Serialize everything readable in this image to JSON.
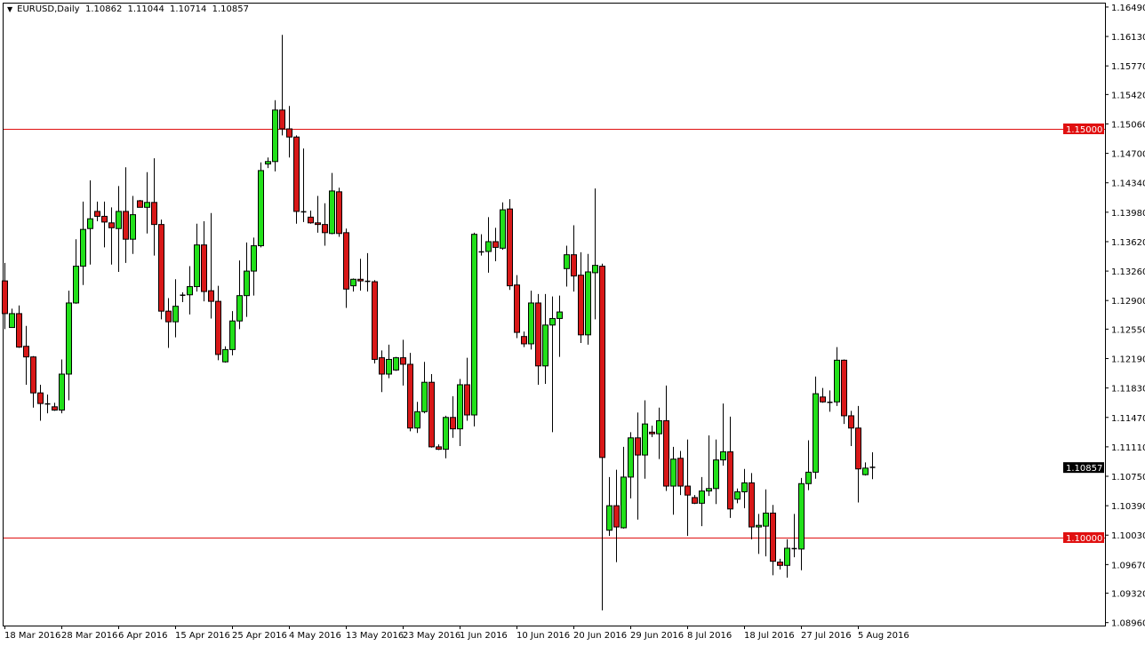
{
  "header": {
    "symbol": "EURUSD,Daily",
    "open": "1.10862",
    "high": "1.11044",
    "low": "1.10714",
    "close": "1.10857"
  },
  "colors": {
    "bull": "#22e01a",
    "bear": "#d81818",
    "level_line": "#e01010",
    "last_price_tag": "#000000"
  },
  "chart_data": {
    "type": "candlestick",
    "title": "",
    "symbol": "EURUSD",
    "timeframe": "Daily",
    "ylim": [
      1.0892,
      1.1652
    ],
    "grid": false,
    "y_ticks": [
      "1.16490",
      "1.16130",
      "1.15770",
      "1.15420",
      "1.15060",
      "1.14700",
      "1.14340",
      "1.13980",
      "1.13620",
      "1.13260",
      "1.12900",
      "1.12550",
      "1.12190",
      "1.11830",
      "1.11470",
      "1.11110",
      "1.10750",
      "1.10390",
      "1.10030",
      "1.09670",
      "1.09320",
      "1.08960"
    ],
    "x_ticks": [
      "18 Mar 2016",
      "28 Mar 2016",
      "6 Apr 2016",
      "15 Apr 2016",
      "25 Apr 2016",
      "4 May 2016",
      "13 May 2016",
      "23 May 2016",
      "1 Jun 2016",
      "10 Jun 2016",
      "20 Jun 2016",
      "29 Jun 2016",
      "8 Jul 2016",
      "18 Jul 2016",
      "27 Jul 2016",
      "5 Aug 2016"
    ],
    "bars_per_x_tick": 8,
    "horizontal_lines": [
      {
        "price": 1.15,
        "label": "1.15000"
      },
      {
        "price": 1.1,
        "label": "1.10000"
      }
    ],
    "last_price": {
      "price": 1.10857,
      "label": "1.10857"
    },
    "ohlc_columns": [
      "open",
      "high",
      "low",
      "close"
    ],
    "candles": [
      [
        1.1314,
        1.1336,
        1.1255,
        1.1274
      ],
      [
        1.1257,
        1.128,
        1.1257,
        1.1274
      ],
      [
        1.1274,
        1.1284,
        1.1232,
        1.1233
      ],
      [
        1.1234,
        1.1259,
        1.1187,
        1.1221
      ],
      [
        1.1221,
        1.1222,
        1.1159,
        1.1177
      ],
      [
        1.1177,
        1.1187,
        1.1143,
        1.1164
      ],
      [
        1.1164,
        1.1175,
        1.1152,
        1.1163
      ],
      [
        1.116,
        1.1165,
        1.1155,
        1.1156
      ],
      [
        1.1156,
        1.1218,
        1.1152,
        1.12
      ],
      [
        1.12,
        1.1302,
        1.1168,
        1.1287
      ],
      [
        1.1287,
        1.1365,
        1.1286,
        1.1332
      ],
      [
        1.1332,
        1.1411,
        1.1309,
        1.1377
      ],
      [
        1.1378,
        1.1437,
        1.1334,
        1.139
      ],
      [
        1.1399,
        1.1411,
        1.1387,
        1.1393
      ],
      [
        1.1393,
        1.1411,
        1.1355,
        1.1386
      ],
      [
        1.1385,
        1.1404,
        1.1334,
        1.1379
      ],
      [
        1.1378,
        1.143,
        1.1325,
        1.1399
      ],
      [
        1.1399,
        1.1453,
        1.1336,
        1.1365
      ],
      [
        1.1365,
        1.1418,
        1.1347,
        1.1395
      ],
      [
        1.1412,
        1.1413,
        1.1404,
        1.1404
      ],
      [
        1.1404,
        1.1447,
        1.1372,
        1.141
      ],
      [
        1.141,
        1.1464,
        1.1345,
        1.1383
      ],
      [
        1.1383,
        1.1389,
        1.1267,
        1.1277
      ],
      [
        1.1277,
        1.1293,
        1.1232,
        1.1264
      ],
      [
        1.1264,
        1.1316,
        1.1245,
        1.1283
      ],
      [
        1.1297,
        1.13,
        1.1288,
        1.1296
      ],
      [
        1.1297,
        1.1332,
        1.1273,
        1.1307
      ],
      [
        1.1307,
        1.1384,
        1.1301,
        1.1358
      ],
      [
        1.1358,
        1.1387,
        1.1289,
        1.1301
      ],
      [
        1.1302,
        1.1397,
        1.1268,
        1.1289
      ],
      [
        1.1289,
        1.1308,
        1.1217,
        1.1224
      ],
      [
        1.1215,
        1.1234,
        1.1214,
        1.123
      ],
      [
        1.123,
        1.1277,
        1.1223,
        1.1265
      ],
      [
        1.1265,
        1.1339,
        1.1255,
        1.1296
      ],
      [
        1.1296,
        1.1361,
        1.127,
        1.1326
      ],
      [
        1.1326,
        1.1367,
        1.1296,
        1.1357
      ],
      [
        1.1357,
        1.1459,
        1.1355,
        1.1449
      ],
      [
        1.1457,
        1.1465,
        1.1452,
        1.146
      ],
      [
        1.146,
        1.1535,
        1.1448,
        1.1523
      ],
      [
        1.1523,
        1.1615,
        1.1492,
        1.15
      ],
      [
        1.15,
        1.1528,
        1.1465,
        1.149
      ],
      [
        1.149,
        1.1492,
        1.1384,
        1.1399
      ],
      [
        1.1399,
        1.1476,
        1.1386,
        1.1398
      ],
      [
        1.1392,
        1.14,
        1.1384,
        1.1385
      ],
      [
        1.1385,
        1.1418,
        1.1373,
        1.1383
      ],
      [
        1.1383,
        1.1409,
        1.1357,
        1.1373
      ],
      [
        1.1372,
        1.1446,
        1.1371,
        1.1424
      ],
      [
        1.1423,
        1.1428,
        1.1368,
        1.1372
      ],
      [
        1.1373,
        1.1378,
        1.1281,
        1.1304
      ],
      [
        1.1308,
        1.1317,
        1.1301,
        1.1316
      ],
      [
        1.1316,
        1.1341,
        1.1302,
        1.1314
      ],
      [
        1.1314,
        1.1348,
        1.1301,
        1.1313
      ],
      [
        1.1313,
        1.1315,
        1.1213,
        1.1218
      ],
      [
        1.122,
        1.1229,
        1.1178,
        1.12
      ],
      [
        1.12,
        1.1236,
        1.1195,
        1.1218
      ],
      [
        1.1205,
        1.1221,
        1.1204,
        1.122
      ],
      [
        1.122,
        1.1242,
        1.1186,
        1.1212
      ],
      [
        1.1212,
        1.1226,
        1.113,
        1.1134
      ],
      [
        1.1134,
        1.1166,
        1.1128,
        1.1154
      ],
      [
        1.1154,
        1.1215,
        1.1152,
        1.119
      ],
      [
        1.119,
        1.12,
        1.111,
        1.1111
      ],
      [
        1.1111,
        1.1114,
        1.1107,
        1.1108
      ],
      [
        1.1108,
        1.1149,
        1.1097,
        1.1147
      ],
      [
        1.1147,
        1.1173,
        1.1122,
        1.1133
      ],
      [
        1.1133,
        1.1194,
        1.1112,
        1.1187
      ],
      [
        1.1187,
        1.122,
        1.1143,
        1.115
      ],
      [
        1.115,
        1.1373,
        1.1136,
        1.1371
      ],
      [
        1.135,
        1.1371,
        1.1345,
        1.1349
      ],
      [
        1.135,
        1.1392,
        1.1324,
        1.1362
      ],
      [
        1.1362,
        1.1379,
        1.1338,
        1.1355
      ],
      [
        1.1354,
        1.141,
        1.1352,
        1.1401
      ],
      [
        1.1402,
        1.1414,
        1.1303,
        1.1308
      ],
      [
        1.1309,
        1.1321,
        1.1244,
        1.1251
      ],
      [
        1.1246,
        1.1252,
        1.1233,
        1.1237
      ],
      [
        1.1237,
        1.1302,
        1.123,
        1.1287
      ],
      [
        1.1287,
        1.1298,
        1.1187,
        1.121
      ],
      [
        1.121,
        1.1298,
        1.1188,
        1.126
      ],
      [
        1.126,
        1.1295,
        1.1129,
        1.1268
      ],
      [
        1.1268,
        1.1296,
        1.1221,
        1.1276
      ],
      [
        1.1329,
        1.1357,
        1.1307,
        1.1346
      ],
      [
        1.1346,
        1.1382,
        1.1301,
        1.132
      ],
      [
        1.1321,
        1.1349,
        1.1238,
        1.1248
      ],
      [
        1.1248,
        1.1347,
        1.1236,
        1.1325
      ],
      [
        1.1324,
        1.1427,
        1.1267,
        1.1333
      ],
      [
        1.1332,
        1.1335,
        1.0911,
        1.1098
      ],
      [
        1.1009,
        1.1074,
        1.1002,
        1.1039
      ],
      [
        1.1039,
        1.1083,
        1.097,
        1.1013
      ],
      [
        1.1012,
        1.1111,
        1.1011,
        1.1074
      ],
      [
        1.1074,
        1.1129,
        1.1048,
        1.1122
      ],
      [
        1.1122,
        1.1153,
        1.1022,
        1.1101
      ],
      [
        1.1101,
        1.1168,
        1.1072,
        1.1139
      ],
      [
        1.1129,
        1.1137,
        1.1123,
        1.1127
      ],
      [
        1.1127,
        1.1159,
        1.1096,
        1.1143
      ],
      [
        1.1143,
        1.1186,
        1.1057,
        1.1063
      ],
      [
        1.1063,
        1.1111,
        1.1028,
        1.1096
      ],
      [
        1.1097,
        1.1106,
        1.1052,
        1.1063
      ],
      [
        1.1063,
        1.112,
        1.1002,
        1.1052
      ],
      [
        1.1049,
        1.1052,
        1.1041,
        1.1042
      ],
      [
        1.1042,
        1.1074,
        1.1014,
        1.1057
      ],
      [
        1.1057,
        1.1125,
        1.1051,
        1.106
      ],
      [
        1.106,
        1.112,
        1.1041,
        1.1095
      ],
      [
        1.1095,
        1.1164,
        1.1088,
        1.1105
      ],
      [
        1.1105,
        1.1148,
        1.1024,
        1.1035
      ],
      [
        1.1047,
        1.106,
        1.1042,
        1.1056
      ],
      [
        1.1056,
        1.1084,
        1.1036,
        1.1067
      ],
      [
        1.1067,
        1.1079,
        1.0998,
        1.1013
      ],
      [
        1.1013,
        1.1029,
        1.098,
        1.1015
      ],
      [
        1.1014,
        1.1059,
        1.0977,
        1.103
      ],
      [
        1.103,
        1.104,
        1.0954,
        1.0971
      ],
      [
        1.097,
        1.0974,
        1.0961,
        1.0966
      ],
      [
        1.0966,
        1.0998,
        1.0951,
        1.0987
      ],
      [
        1.0987,
        1.1029,
        1.0976,
        1.0986
      ],
      [
        1.0986,
        1.1073,
        1.096,
        1.1066
      ],
      [
        1.1066,
        1.1119,
        1.1058,
        1.108
      ],
      [
        1.108,
        1.1197,
        1.1072,
        1.1176
      ],
      [
        1.1172,
        1.1183,
        1.1165,
        1.1166
      ],
      [
        1.1166,
        1.118,
        1.1154,
        1.1165
      ],
      [
        1.1166,
        1.1233,
        1.1161,
        1.1217
      ],
      [
        1.1217,
        1.1218,
        1.1139,
        1.1149
      ],
      [
        1.1149,
        1.1155,
        1.1112,
        1.1134
      ],
      [
        1.1134,
        1.1161,
        1.1043,
        1.1084
      ],
      [
        1.1077,
        1.1092,
        1.1076,
        1.1085
      ],
      [
        1.10862,
        1.11044,
        1.10714,
        1.10857
      ]
    ]
  }
}
